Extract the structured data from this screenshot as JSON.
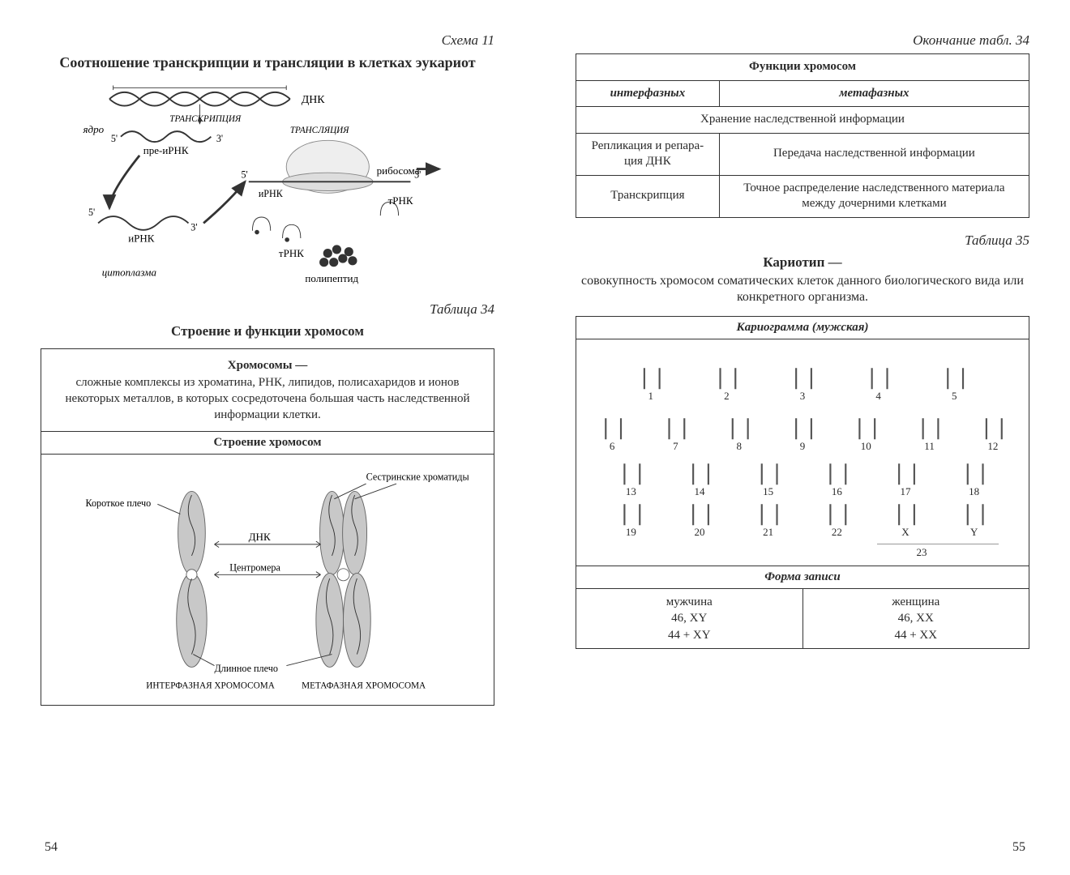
{
  "colors": {
    "ink": "#2a2a2a",
    "border": "#333333",
    "bg": "#ffffff",
    "shade": "#b9b9b9"
  },
  "left": {
    "schemeCaption": "Схема 11",
    "schemeTitle": "Соотношение транскрипции и трансляции в клетках эукариот",
    "diagram1": {
      "labels": {
        "dna": "ДНК",
        "nucleus": "ядро",
        "preRNA": "пре-иРНК",
        "transcription": "ТРАНСКРИПЦИЯ",
        "translation": "ТРАНСЛЯЦИЯ",
        "mRNA": "иРНК",
        "tRNA": "тРНК",
        "ribosome": "рибосома",
        "cytoplasm": "цитоплазма",
        "polypeptide": "полипептид",
        "five": "5'",
        "three": "3'"
      }
    },
    "tableCaption": "Таблица 34",
    "tableTitle": "Строение и функции хромосом",
    "chromosomeDef": {
      "head": "Хромосомы —",
      "body": "сложные комплексы из хроматина, РНК, липидов, полисахаридов и ионов некоторых металлов, в которых сосредоточена большая часть наследственной информации клетки."
    },
    "structureHead": "Строение хромосом",
    "diagram2": {
      "labels": {
        "sister": "Сестринские хроматиды",
        "shortArm": "Короткое плечо",
        "dna": "ДНК",
        "centromere": "Центромера",
        "longArm": "Длинное плечо",
        "interphase": "ИНТЕРФАЗНАЯ ХРОМОСОМА",
        "metaphase": "МЕТАФАЗНАЯ ХРОМОСОМА"
      }
    },
    "pageNum": "54"
  },
  "right": {
    "contCaption": "Окончание табл. 34",
    "funcTable": {
      "header": "Функции хромосом",
      "col1": "интерфазных",
      "col2": "метафазных",
      "rowMerged": "Хранение наследственной информации",
      "row2a": "Репликация и репара­ция ДНК",
      "row2b": "Передача наследственной информации",
      "row3a": "Транскрипция",
      "row3b": "Точное распределение наследственного материала между дочерними клетками"
    },
    "table35Caption": "Таблица 35",
    "karyoTitle": "Кариотип —",
    "karyoDef": "совокупность хромосом соматических клеток данного биологического вида или конкретного организма.",
    "karyogramHead": "Кариограмма (мужская)",
    "karyogram": {
      "row1": [
        "1",
        "2",
        "3",
        "4",
        "5"
      ],
      "row2": [
        "6",
        "7",
        "8",
        "9",
        "10",
        "11",
        "12"
      ],
      "row3": [
        "13",
        "14",
        "15",
        "16",
        "17",
        "18"
      ],
      "row4": [
        "19",
        "20",
        "21",
        "22",
        "X",
        "Y"
      ],
      "group23": "23",
      "heights": {
        "row1": 50,
        "row2": 34,
        "row3": 28,
        "row4": 22
      }
    },
    "formHead": "Форма записи",
    "formMale": {
      "label": "мужчина",
      "l1": "46, XY",
      "l2": "44 + XY"
    },
    "formFemale": {
      "label": "женщина",
      "l1": "46, XX",
      "l2": "44 + XX"
    },
    "pageNum": "55"
  }
}
